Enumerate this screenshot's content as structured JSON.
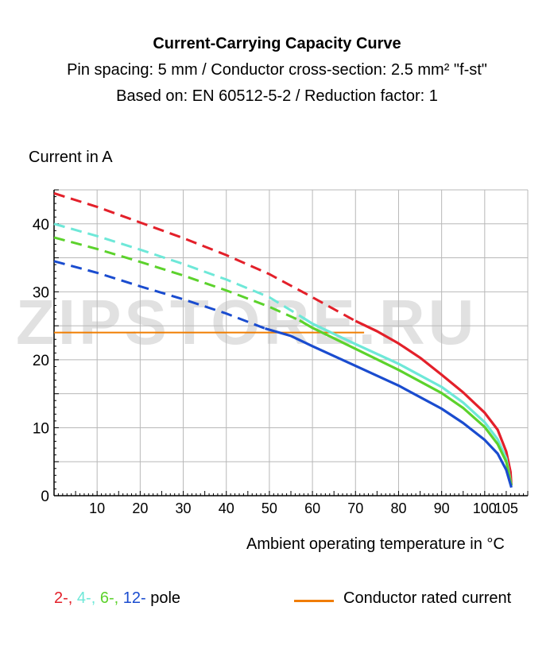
{
  "chart_data": {
    "type": "line",
    "title": "Current-Carrying Capacity Curve",
    "subtitle_lines": [
      "Pin spacing: 5 mm / Conductor cross-section: 2.5 mm² \"f-st\"",
      "Based on: EN 60512-5-2 / Reduction factor: 1"
    ],
    "ylabel": "Current in A",
    "xlabel": "Ambient operating temperature in °C",
    "xlim": [
      0,
      110
    ],
    "ylim": [
      0,
      45
    ],
    "x_ticks": [
      "10",
      "20",
      "30",
      "40",
      "50",
      "60",
      "70",
      "80",
      "90",
      "100",
      "105"
    ],
    "y_ticks": [
      "0",
      "10",
      "20",
      "30",
      "40"
    ],
    "grid": true,
    "rated_current": {
      "name": "Conductor rated current",
      "value": 24,
      "color": "#f07d00"
    },
    "series": [
      {
        "name": "2-",
        "color": "#e3202a",
        "dashed": [
          [
            0,
            44.5
          ],
          [
            10,
            42.5
          ],
          [
            20,
            40.2
          ],
          [
            30,
            37.9
          ],
          [
            40,
            35.4
          ],
          [
            50,
            32.6
          ],
          [
            60,
            29.2
          ],
          [
            70,
            25.7
          ]
        ],
        "solid": [
          [
            70,
            25.7
          ],
          [
            75,
            24.2
          ],
          [
            80,
            22.4
          ],
          [
            85,
            20.3
          ],
          [
            90,
            17.8
          ],
          [
            95,
            15.2
          ],
          [
            100,
            12.2
          ],
          [
            103,
            9.7
          ],
          [
            105,
            6.5
          ],
          [
            106,
            3.5
          ],
          [
            106.2,
            1.5
          ]
        ]
      },
      {
        "name": "4-",
        "color": "#6ee8d8",
        "dashed": [
          [
            0,
            40
          ],
          [
            10,
            38.2
          ],
          [
            20,
            36.2
          ],
          [
            30,
            34.1
          ],
          [
            40,
            31.8
          ],
          [
            50,
            29.2
          ],
          [
            57,
            26.5
          ]
        ],
        "solid": [
          [
            57,
            26.5
          ],
          [
            60,
            25.3
          ],
          [
            70,
            22.3
          ],
          [
            80,
            19.4
          ],
          [
            90,
            16
          ],
          [
            95,
            13.7
          ],
          [
            100,
            10.8
          ],
          [
            103,
            8.3
          ],
          [
            105,
            5.5
          ],
          [
            106.2,
            1.5
          ]
        ]
      },
      {
        "name": "6-",
        "color": "#5cd22c",
        "dashed": [
          [
            0,
            38
          ],
          [
            10,
            36.3
          ],
          [
            20,
            34.4
          ],
          [
            30,
            32.4
          ],
          [
            40,
            30.2
          ],
          [
            50,
            27.8
          ],
          [
            57,
            25.8
          ]
        ],
        "solid": [
          [
            57,
            25.8
          ],
          [
            60,
            24.7
          ],
          [
            70,
            21.6
          ],
          [
            80,
            18.5
          ],
          [
            90,
            15.1
          ],
          [
            95,
            12.9
          ],
          [
            100,
            10.1
          ],
          [
            103,
            7.6
          ],
          [
            105,
            5
          ],
          [
            106.2,
            1.5
          ]
        ]
      },
      {
        "name": "12-",
        "color": "#1a4ccf",
        "dashed": [
          [
            0,
            34.5
          ],
          [
            10,
            32.8
          ],
          [
            20,
            30.8
          ],
          [
            30,
            28.9
          ],
          [
            40,
            26.8
          ],
          [
            49,
            24.6
          ]
        ],
        "solid": [
          [
            49,
            24.6
          ],
          [
            55,
            23.5
          ],
          [
            60,
            22
          ],
          [
            70,
            19.1
          ],
          [
            80,
            16.2
          ],
          [
            90,
            12.8
          ],
          [
            95,
            10.7
          ],
          [
            100,
            8.2
          ],
          [
            103,
            6.2
          ],
          [
            105,
            3.8
          ],
          [
            106.2,
            1.2
          ]
        ]
      }
    ],
    "legend_suffix": "pole"
  },
  "watermark": "ZIPSTORE.RU"
}
